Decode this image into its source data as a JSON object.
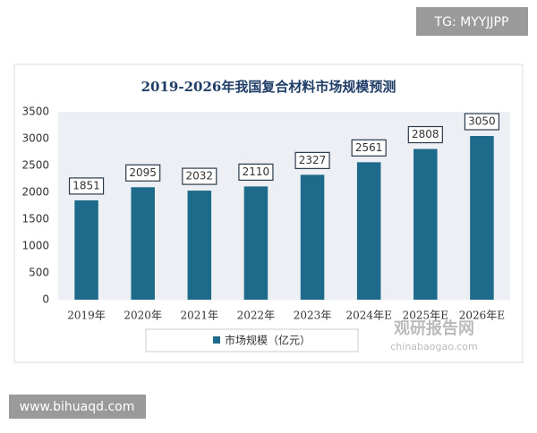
{
  "badge": "TG: MYYJJPP",
  "footer": "www.bihuaqd.com",
  "watermark": {
    "name": "观研报告网",
    "url": "chinabaogao.com"
  },
  "chart_data": {
    "type": "bar",
    "title": "2019-2026年我国复合材料市场规模预测",
    "categories": [
      "2019年",
      "2020年",
      "2021年",
      "2022年",
      "2023年",
      "2024年E",
      "2025年E",
      "2026年E"
    ],
    "series": [
      {
        "name": "市场规模（亿元）",
        "color": "#1d6a8a",
        "values": [
          1851,
          2095,
          2032,
          2110,
          2327,
          2561,
          2808,
          3050
        ]
      }
    ],
    "ylim": [
      0,
      3500
    ],
    "yticks": [
      0,
      500,
      1000,
      1500,
      2000,
      2500,
      3000,
      3500
    ],
    "grid": false,
    "legend": "bottom"
  }
}
